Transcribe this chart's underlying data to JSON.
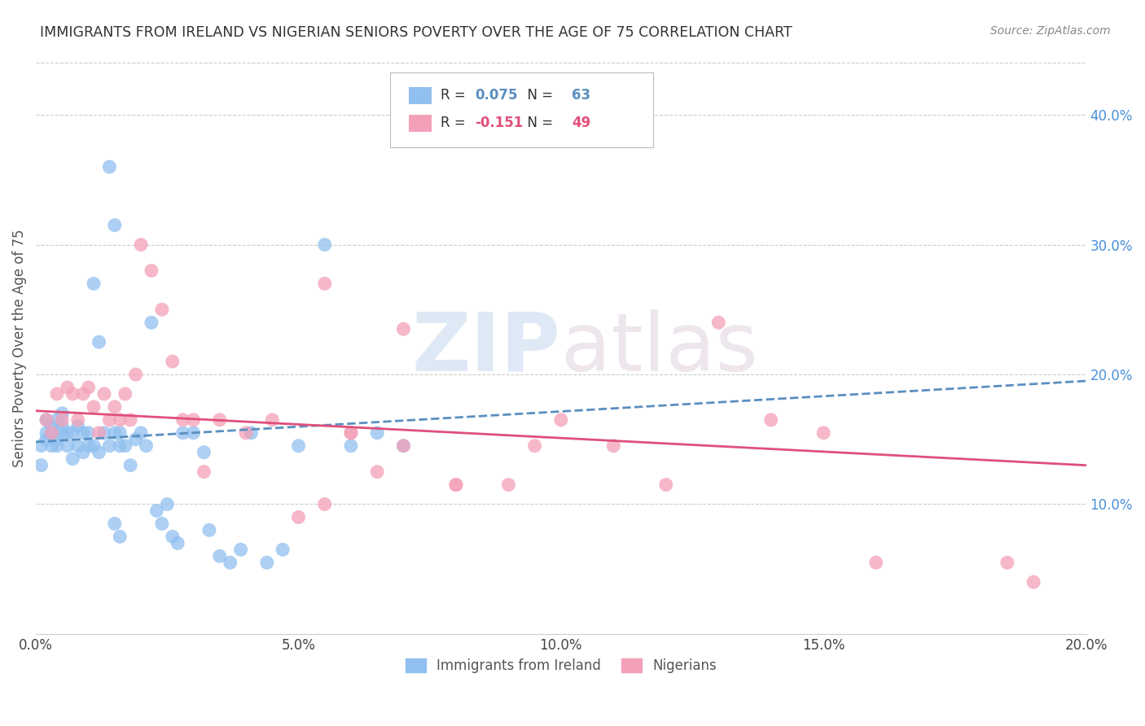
{
  "title": "IMMIGRANTS FROM IRELAND VS NIGERIAN SENIORS POVERTY OVER THE AGE OF 75 CORRELATION CHART",
  "source": "Source: ZipAtlas.com",
  "ylabel": "Seniors Poverty Over the Age of 75",
  "legend_bottom": [
    "Immigrants from Ireland",
    "Nigerians"
  ],
  "r_ireland": 0.075,
  "n_ireland": 63,
  "r_nigeria": -0.151,
  "n_nigeria": 49,
  "color_ireland": "#91C0F0",
  "color_nigeria": "#F4A0B8",
  "line_color_ireland": "#5A8FC0",
  "line_color_nigeria": "#E0507A",
  "background_color": "#FFFFFF",
  "watermark_zip": "ZIP",
  "watermark_atlas": "atlas",
  "xlim": [
    0.0,
    0.2
  ],
  "ylim": [
    0.0,
    0.44
  ],
  "xticks": [
    0.0,
    0.05,
    0.1,
    0.15,
    0.2
  ],
  "yticks_right": [
    0.1,
    0.2,
    0.3,
    0.4
  ],
  "ireland_x": [
    0.001,
    0.001,
    0.002,
    0.002,
    0.002,
    0.003,
    0.003,
    0.003,
    0.004,
    0.004,
    0.004,
    0.005,
    0.005,
    0.005,
    0.006,
    0.006,
    0.007,
    0.007,
    0.008,
    0.008,
    0.009,
    0.009,
    0.01,
    0.01,
    0.011,
    0.011,
    0.012,
    0.012,
    0.013,
    0.014,
    0.015,
    0.015,
    0.016,
    0.016,
    0.017,
    0.018,
    0.019,
    0.02,
    0.021,
    0.022,
    0.023,
    0.024,
    0.025,
    0.026,
    0.027,
    0.028,
    0.03,
    0.032,
    0.033,
    0.035,
    0.037,
    0.039,
    0.041,
    0.044,
    0.047,
    0.05,
    0.055,
    0.06,
    0.065,
    0.07,
    0.014,
    0.015,
    0.016
  ],
  "ireland_y": [
    0.145,
    0.13,
    0.15,
    0.165,
    0.155,
    0.16,
    0.145,
    0.155,
    0.165,
    0.15,
    0.145,
    0.155,
    0.17,
    0.16,
    0.145,
    0.155,
    0.135,
    0.155,
    0.145,
    0.16,
    0.14,
    0.155,
    0.145,
    0.155,
    0.27,
    0.145,
    0.225,
    0.14,
    0.155,
    0.145,
    0.315,
    0.155,
    0.145,
    0.155,
    0.145,
    0.13,
    0.15,
    0.155,
    0.145,
    0.24,
    0.095,
    0.085,
    0.1,
    0.075,
    0.07,
    0.155,
    0.155,
    0.14,
    0.08,
    0.06,
    0.055,
    0.065,
    0.155,
    0.055,
    0.065,
    0.145,
    0.3,
    0.145,
    0.155,
    0.145,
    0.36,
    0.085,
    0.075
  ],
  "nigeria_x": [
    0.002,
    0.003,
    0.004,
    0.005,
    0.006,
    0.007,
    0.008,
    0.009,
    0.01,
    0.011,
    0.012,
    0.013,
    0.014,
    0.015,
    0.016,
    0.017,
    0.018,
    0.019,
    0.02,
    0.022,
    0.024,
    0.026,
    0.028,
    0.03,
    0.032,
    0.035,
    0.04,
    0.045,
    0.05,
    0.055,
    0.06,
    0.065,
    0.07,
    0.08,
    0.09,
    0.1,
    0.11,
    0.12,
    0.13,
    0.14,
    0.15,
    0.16,
    0.055,
    0.06,
    0.07,
    0.08,
    0.095,
    0.185,
    0.19
  ],
  "nigeria_y": [
    0.165,
    0.155,
    0.185,
    0.165,
    0.19,
    0.185,
    0.165,
    0.185,
    0.19,
    0.175,
    0.155,
    0.185,
    0.165,
    0.175,
    0.165,
    0.185,
    0.165,
    0.2,
    0.3,
    0.28,
    0.25,
    0.21,
    0.165,
    0.165,
    0.125,
    0.165,
    0.155,
    0.165,
    0.09,
    0.27,
    0.155,
    0.125,
    0.235,
    0.115,
    0.115,
    0.165,
    0.145,
    0.115,
    0.24,
    0.165,
    0.155,
    0.055,
    0.1,
    0.155,
    0.145,
    0.115,
    0.145,
    0.055,
    0.04
  ],
  "ireland_trend_x": [
    0.0,
    0.2
  ],
  "ireland_trend_y": [
    0.148,
    0.195
  ],
  "nigeria_trend_x": [
    0.0,
    0.2
  ],
  "nigeria_trend_y": [
    0.172,
    0.13
  ]
}
